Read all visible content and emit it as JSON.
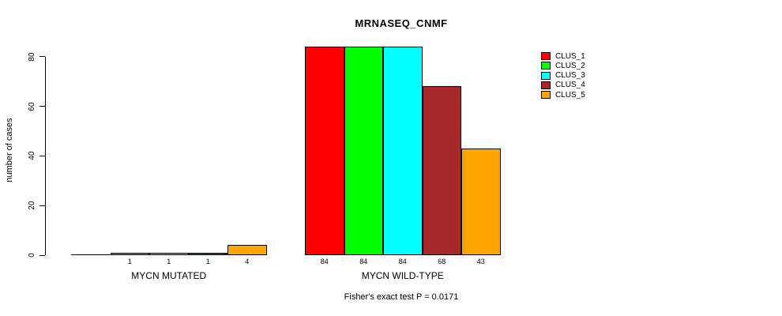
{
  "chart_data": {
    "type": "bar",
    "title": "MRNASEQ_CNMF",
    "ylabel": "number of cases",
    "xlabel": "",
    "ylim": [
      0,
      84
    ],
    "yticks": [
      0,
      20,
      40,
      60,
      80
    ],
    "grid": false,
    "legend_position": "right",
    "categories": [
      "MYCN MUTATED",
      "MYCN WILD-TYPE"
    ],
    "series": [
      {
        "name": "CLUS_1",
        "color": "#ff0000",
        "values": [
          0,
          84
        ]
      },
      {
        "name": "CLUS_2",
        "color": "#00ff00",
        "values": [
          1,
          84
        ]
      },
      {
        "name": "CLUS_3",
        "color": "#00ffff",
        "values": [
          1,
          84
        ]
      },
      {
        "name": "CLUS_4",
        "color": "#a52a2a",
        "values": [
          1,
          68
        ]
      },
      {
        "name": "CLUS_5",
        "color": "#ffa500",
        "values": [
          4,
          43
        ]
      }
    ],
    "bar_value_labels": [
      "",
      "1",
      "1",
      "1",
      "4",
      "84",
      "84",
      "84",
      "68",
      "43"
    ],
    "footnote": "Fisher's exact test P = 0.0171"
  }
}
